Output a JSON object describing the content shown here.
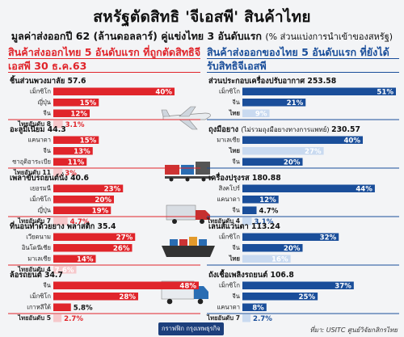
{
  "header": {
    "title": "สหรัฐตัดสิทธิ 'จีเอสพี' สินค้าไทย",
    "subtitle": "มูลค่าส่งออกปี 62 (ล้านดอลลาร์) คู่แข่งไทย 3 อันดับแรก",
    "subtitle_note": "(% ส่วนแบ่งการนำเข้าของสหรัฐ)"
  },
  "left_section": {
    "title": "สินค้าส่งออกไทย 5 อันดับแรก ที่ถูกตัดสิทธิจีเอสพี 30 ธ.ค.63"
  },
  "right_section": {
    "title": "สินค้าส่งออกของไทย 5 อันดับแรก ที่ยังได้รับสิทธิจีเอสพี"
  },
  "footer": {
    "logo": "กราฟฟิก กรุงเทพธุรกิจ",
    "source": "ที่มา: USITC ศูนย์วิจัยกสิกรไทย"
  },
  "colors": {
    "left_accent": "#e0252b",
    "right_accent": "#1a4e9a",
    "bar_light": "#f6c8cb",
    "bar_light_blue": "#c9daf0"
  },
  "chart_data": [
    {
      "type": "bar",
      "title": "ชิ้นส่วนพวงมาลัย",
      "value": "57.6",
      "side": "left",
      "series": [
        {
          "name": "เม็กซิโก",
          "share": 40
        },
        {
          "name": "ญี่ปุ่น",
          "share": 15
        },
        {
          "name": "จีน",
          "share": 12
        },
        {
          "name": "ไทยอันดับ 8",
          "share": 3.1,
          "thai": true
        }
      ]
    },
    {
      "type": "bar",
      "title": "อะลูมิเนียม",
      "value": "44.3",
      "side": "left",
      "series": [
        {
          "name": "แคนาดา",
          "share": 15
        },
        {
          "name": "จีน",
          "share": 13
        },
        {
          "name": "ซาอุดิอาระเบีย",
          "share": 11
        },
        {
          "name": "ไทยอันดับ 11",
          "share": 3,
          "thai": true
        }
      ]
    },
    {
      "type": "bar",
      "title": "เพลาขับรถยนต์นั่ง",
      "value": "40.6",
      "side": "left",
      "series": [
        {
          "name": "เยอรมนี",
          "share": 23
        },
        {
          "name": "เม็กซิโก",
          "share": 20
        },
        {
          "name": "ญี่ปุ่น",
          "share": 19
        },
        {
          "name": "ไทยอันดับ 7",
          "share": 4.7,
          "thai": true
        }
      ]
    },
    {
      "type": "bar",
      "title": "ที่นอนทำด้วยยาง พลาสติก",
      "value": "35.4",
      "side": "left",
      "series": [
        {
          "name": "เวียดนาม",
          "share": 27
        },
        {
          "name": "อินโดนีเซีย",
          "share": 26
        },
        {
          "name": "มาเลเซีย",
          "share": 14
        },
        {
          "name": "ไทยอันดับ 4",
          "share": 7.6,
          "thai": true
        }
      ]
    },
    {
      "type": "bar",
      "title": "ล้อรถยนต์",
      "value": "34.7",
      "side": "left",
      "series": [
        {
          "name": "จีน",
          "share": 48
        },
        {
          "name": "เม็กซิโก",
          "share": 28
        },
        {
          "name": "เกาหลีใต้",
          "share": 5.8
        },
        {
          "name": "ไทยอันดับ 5",
          "share": 2.7,
          "thai": true
        }
      ]
    },
    {
      "type": "bar",
      "title": "ส่วนประกอบเครื่องปรับอากาศ",
      "value": "253.58",
      "side": "right",
      "series": [
        {
          "name": "เม็กซิโก",
          "share": 51
        },
        {
          "name": "จีน",
          "share": 21
        },
        {
          "name": "ไทย",
          "share": 9,
          "thai": true
        }
      ]
    },
    {
      "type": "bar",
      "title": "ถุงมือยาง",
      "value": "230.57",
      "subnote": "(ไม่รวมถุงมือยางทางการแพทย์)",
      "side": "right",
      "series": [
        {
          "name": "มาเลเซีย",
          "share": 40
        },
        {
          "name": "ไทย",
          "share": 27,
          "thai": true
        },
        {
          "name": "จีน",
          "share": 20
        }
      ]
    },
    {
      "type": "bar",
      "title": "เครื่องปรุงรส",
      "value": "180.88",
      "side": "right",
      "series": [
        {
          "name": "สิงคโปร์",
          "share": 44
        },
        {
          "name": "แคนาดา",
          "share": 12
        },
        {
          "name": "จีน",
          "share": 4.7
        },
        {
          "name": "ไทยอันดับ 4",
          "share": 3.1,
          "thai": true
        }
      ]
    },
    {
      "type": "bar",
      "title": "เลนส์แว่นตา",
      "value": "113.24",
      "side": "right",
      "series": [
        {
          "name": "เม็กซิโก",
          "share": 32
        },
        {
          "name": "จีน",
          "share": 20
        },
        {
          "name": "ไทย",
          "share": 16,
          "thai": true
        }
      ]
    },
    {
      "type": "bar",
      "title": "ถังเชื้อเพลิงรถยนต์",
      "value": "106.8",
      "side": "right",
      "series": [
        {
          "name": "เม็กซิโก",
          "share": 37
        },
        {
          "name": "จีน",
          "share": 25
        },
        {
          "name": "แคนาดา",
          "share": 8
        },
        {
          "name": "ไทยอันดับ 7",
          "share": 2.7,
          "thai": true
        }
      ]
    }
  ]
}
